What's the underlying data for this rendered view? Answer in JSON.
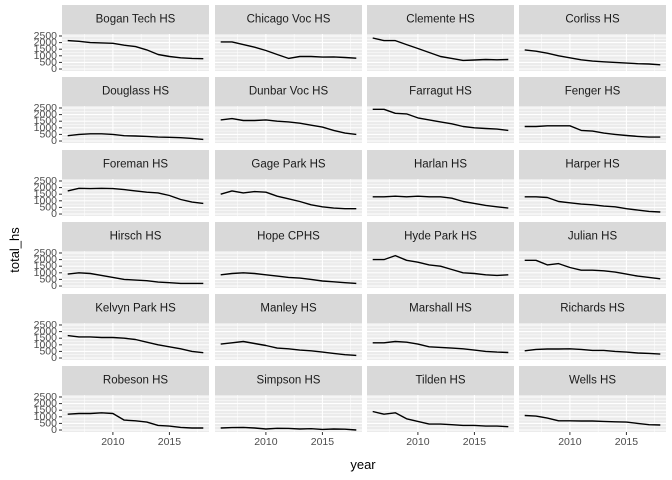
{
  "chart_data": {
    "type": "line",
    "layout": "facet_wrap",
    "xlabel": "year",
    "ylabel": "total_hs",
    "xlim": [
      2005.5,
      2018.5
    ],
    "ylim": [
      -150,
      2650
    ],
    "x_ticks": [
      2010,
      2015
    ],
    "y_ticks": [
      0,
      500,
      1000,
      1500,
      2000,
      2500
    ],
    "grid": true,
    "x": [
      2006,
      2007,
      2008,
      2009,
      2010,
      2011,
      2012,
      2013,
      2014,
      2015,
      2016,
      2017,
      2018
    ],
    "panels": [
      {
        "name": "Bogan Tech HS",
        "values": [
          2150,
          2100,
          2000,
          1980,
          1950,
          1800,
          1700,
          1450,
          1100,
          950,
          850,
          800,
          780
        ]
      },
      {
        "name": "Chicago Voc HS",
        "values": [
          2050,
          2050,
          1850,
          1650,
          1400,
          1100,
          800,
          950,
          950,
          900,
          920,
          870,
          820
        ]
      },
      {
        "name": "Clemente HS",
        "values": [
          2350,
          2150,
          2150,
          1850,
          1550,
          1250,
          950,
          800,
          650,
          680,
          720,
          700,
          720
        ]
      },
      {
        "name": "Corliss HS",
        "values": [
          1450,
          1350,
          1200,
          1000,
          850,
          700,
          600,
          550,
          500,
          450,
          400,
          380,
          320
        ]
      },
      {
        "name": "Douglass HS",
        "values": [
          400,
          500,
          550,
          550,
          500,
          400,
          380,
          350,
          300,
          280,
          250,
          200,
          120
        ]
      },
      {
        "name": "Dunbar Voc HS",
        "values": [
          1600,
          1700,
          1550,
          1550,
          1600,
          1500,
          1450,
          1350,
          1200,
          1050,
          800,
          600,
          500
        ]
      },
      {
        "name": "Farragut HS",
        "values": [
          2400,
          2400,
          2100,
          2050,
          1750,
          1600,
          1450,
          1300,
          1100,
          1000,
          950,
          900,
          800
        ]
      },
      {
        "name": "Fenger  HS",
        "values": [
          1100,
          1100,
          1150,
          1150,
          1150,
          800,
          750,
          600,
          500,
          420,
          350,
          300,
          300
        ]
      },
      {
        "name": "Foreman HS",
        "values": [
          1750,
          1950,
          1920,
          1950,
          1920,
          1850,
          1750,
          1650,
          1600,
          1400,
          1100,
          900,
          800
        ]
      },
      {
        "name": "Gage Park HS",
        "values": [
          1500,
          1750,
          1600,
          1700,
          1650,
          1350,
          1150,
          950,
          700,
          550,
          450,
          400,
          400
        ]
      },
      {
        "name": "Harlan HS",
        "values": [
          1300,
          1300,
          1350,
          1300,
          1350,
          1300,
          1300,
          1200,
          950,
          800,
          650,
          550,
          450
        ]
      },
      {
        "name": "Harper HS",
        "values": [
          1300,
          1300,
          1250,
          950,
          850,
          750,
          700,
          600,
          550,
          400,
          300,
          200,
          150
        ]
      },
      {
        "name": "Hirsch HS",
        "values": [
          900,
          1000,
          950,
          800,
          650,
          500,
          450,
          400,
          300,
          250,
          200,
          200,
          200
        ]
      },
      {
        "name": "Hope CPHS",
        "values": [
          850,
          950,
          1000,
          950,
          850,
          750,
          650,
          600,
          500,
          380,
          320,
          250,
          200
        ]
      },
      {
        "name": "Hyde Park HS",
        "values": [
          2000,
          2000,
          2300,
          1950,
          1800,
          1600,
          1500,
          1250,
          1000,
          950,
          850,
          800,
          850
        ]
      },
      {
        "name": "Julian HS",
        "values": [
          1950,
          1950,
          1600,
          1700,
          1400,
          1200,
          1200,
          1150,
          1050,
          900,
          750,
          650,
          550
        ]
      },
      {
        "name": "Kelvyn Park HS",
        "values": [
          1700,
          1600,
          1600,
          1550,
          1550,
          1500,
          1400,
          1200,
          1000,
          850,
          700,
          500,
          400
        ]
      },
      {
        "name": "Manley HS",
        "values": [
          1050,
          1150,
          1250,
          1100,
          950,
          750,
          700,
          600,
          550,
          450,
          350,
          250,
          200
        ]
      },
      {
        "name": "Marshall HS",
        "values": [
          1150,
          1150,
          1250,
          1200,
          1050,
          850,
          800,
          750,
          700,
          600,
          500,
          450,
          420
        ]
      },
      {
        "name": "Richards HS",
        "values": [
          550,
          650,
          680,
          680,
          700,
          650,
          580,
          580,
          500,
          450,
          380,
          350,
          300
        ]
      },
      {
        "name": "Robeson HS",
        "values": [
          1200,
          1250,
          1250,
          1300,
          1250,
          750,
          700,
          600,
          350,
          300,
          200,
          150,
          150
        ]
      },
      {
        "name": "Simpson HS",
        "values": [
          150,
          180,
          200,
          150,
          80,
          130,
          120,
          80,
          100,
          50,
          80,
          60,
          0
        ]
      },
      {
        "name": "Tilden HS",
        "values": [
          1400,
          1200,
          1300,
          850,
          650,
          450,
          450,
          400,
          350,
          350,
          300,
          300,
          250
        ]
      },
      {
        "name": "Wells HS",
        "values": [
          1100,
          1050,
          900,
          700,
          700,
          680,
          680,
          650,
          620,
          600,
          500,
          400,
          380
        ]
      }
    ]
  }
}
